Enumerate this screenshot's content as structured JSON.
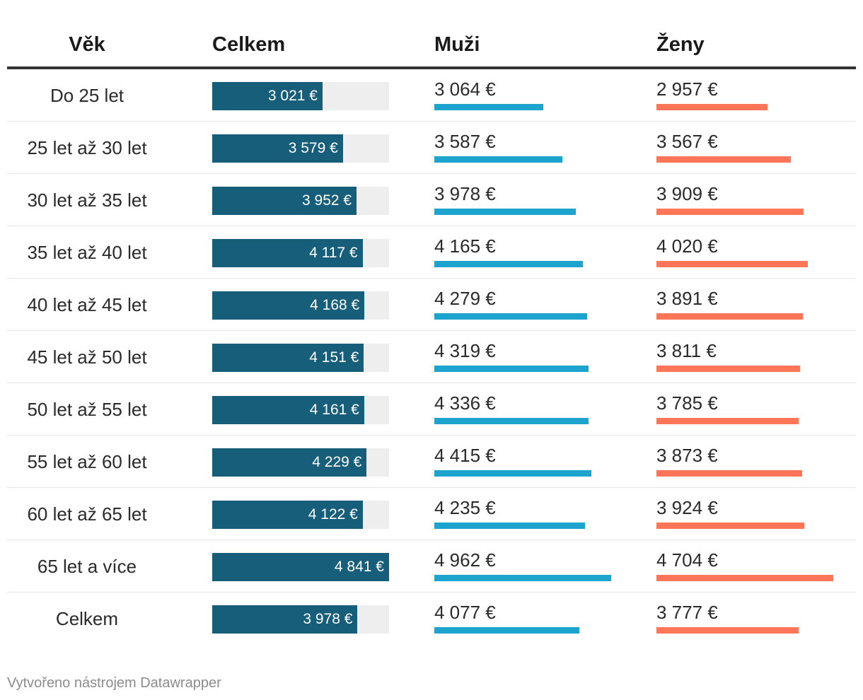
{
  "chart_data": {
    "type": "table",
    "columns": [
      "Věk",
      "Celkem",
      "Muži",
      "Ženy"
    ],
    "rows": [
      {
        "age": "Do 25 let",
        "total": 3021,
        "total_label": "3 021 €",
        "men": 3064,
        "men_label": "3 064 €",
        "women": 2957,
        "women_label": "2 957 €"
      },
      {
        "age": "25 let až 30 let",
        "total": 3579,
        "total_label": "3 579 €",
        "men": 3587,
        "men_label": "3 587 €",
        "women": 3567,
        "women_label": "3 567 €"
      },
      {
        "age": "30 let až 35 let",
        "total": 3952,
        "total_label": "3 952 €",
        "men": 3978,
        "men_label": "3 978 €",
        "women": 3909,
        "women_label": "3 909 €"
      },
      {
        "age": "35 let až 40 let",
        "total": 4117,
        "total_label": "4 117 €",
        "men": 4165,
        "men_label": "4 165 €",
        "women": 4020,
        "women_label": "4 020 €"
      },
      {
        "age": "40 let až 45 let",
        "total": 4168,
        "total_label": "4 168 €",
        "men": 4279,
        "men_label": "4 279 €",
        "women": 3891,
        "women_label": "3 891 €"
      },
      {
        "age": "45 let až 50 let",
        "total": 4151,
        "total_label": "4 151 €",
        "men": 4319,
        "men_label": "4 319 €",
        "women": 3811,
        "women_label": "3 811 €"
      },
      {
        "age": "50 let až 55 let",
        "total": 4161,
        "total_label": "4 161 €",
        "men": 4336,
        "men_label": "4 336 €",
        "women": 3785,
        "women_label": "3 785 €"
      },
      {
        "age": "55 let až 60 let",
        "total": 4229,
        "total_label": "4 229 €",
        "men": 4415,
        "men_label": "4 415 €",
        "women": 3873,
        "women_label": "3 873 €"
      },
      {
        "age": "60 let až 65 let",
        "total": 4122,
        "total_label": "4 122 €",
        "men": 4235,
        "men_label": "4 235 €",
        "women": 3924,
        "women_label": "3 924 €"
      },
      {
        "age": "65 let a více",
        "total": 4841,
        "total_label": "4 841 €",
        "men": 4962,
        "men_label": "4 962 €",
        "women": 4704,
        "women_label": "4 704 €"
      },
      {
        "age": "Celkem",
        "total": 3978,
        "total_label": "3 978 €",
        "men": 4077,
        "men_label": "4 077 €",
        "women": 3777,
        "women_label": "3 777 €"
      }
    ],
    "colors": {
      "total": "#175e7a",
      "total_track": "#eeeeee",
      "men": "#1ca4cf",
      "women": "#ff7558"
    }
  },
  "footer": "Vytvořeno nástrojem Datawrapper"
}
